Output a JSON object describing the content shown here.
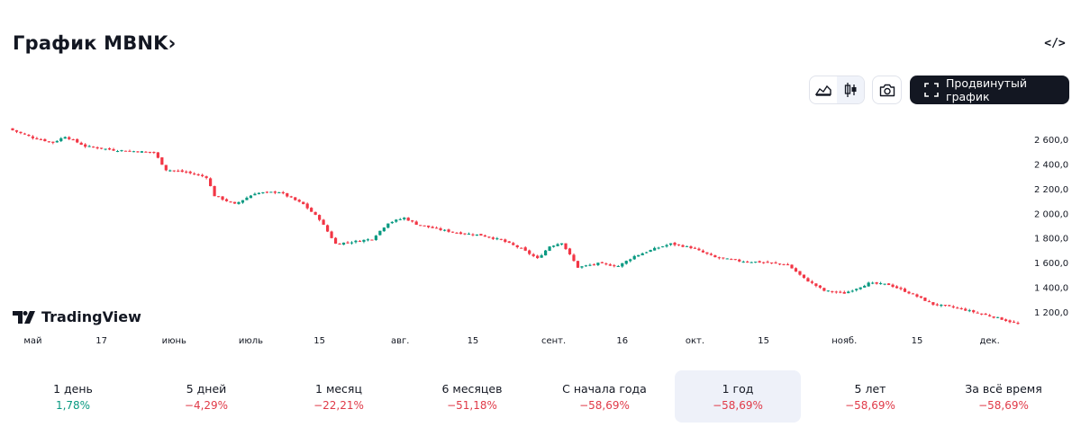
{
  "header": {
    "title": "График MBNK›",
    "embed_icon": "code-icon"
  },
  "toolbar": {
    "area_icon": "area-chart-icon",
    "candle_icon": "candlestick-icon",
    "camera_icon": "camera-icon",
    "advanced_label": "Продвинутый график",
    "advanced_icon": "fullscreen-icon"
  },
  "logo": {
    "text": "TradingView"
  },
  "colors": {
    "up": "#089981",
    "down": "#f23645",
    "accent": "#131722",
    "active_bg": "#eef1f9"
  },
  "periods": [
    {
      "label": "1 день",
      "change": "1,78%",
      "positive": true
    },
    {
      "label": "5 дней",
      "change": "−4,29%",
      "positive": false
    },
    {
      "label": "1 месяц",
      "change": "−22,21%",
      "positive": false
    },
    {
      "label": "6 месяцев",
      "change": "−51,18%",
      "positive": false
    },
    {
      "label": "С начала года",
      "change": "−58,69%",
      "positive": false
    },
    {
      "label": "1 год",
      "change": "−58,69%",
      "positive": false,
      "active": true
    },
    {
      "label": "5 лет",
      "change": "−58,69%",
      "positive": false
    },
    {
      "label": "За всё время",
      "change": "−58,69%",
      "positive": false
    }
  ],
  "chart_data": {
    "type": "candlestick",
    "title": "",
    "y_axis_position": "right",
    "ylim": [
      1070,
      2730
    ],
    "y_ticks": [
      {
        "value": 2600,
        "label": "2 600,0"
      },
      {
        "value": 2400,
        "label": "2 400,0"
      },
      {
        "value": 2200,
        "label": "2 200,0"
      },
      {
        "value": 2000,
        "label": "2 000,0"
      },
      {
        "value": 1800,
        "label": "1 800,0"
      },
      {
        "value": 1600,
        "label": "1 600,0"
      },
      {
        "value": 1400,
        "label": "1 400,0"
      },
      {
        "value": 1200,
        "label": "1 200,0"
      }
    ],
    "x_ticks": [
      {
        "index": 5,
        "label": "май"
      },
      {
        "index": 22,
        "label": "17"
      },
      {
        "index": 40,
        "label": "июнь"
      },
      {
        "index": 59,
        "label": "июль"
      },
      {
        "index": 76,
        "label": "15"
      },
      {
        "index": 96,
        "label": "авг."
      },
      {
        "index": 114,
        "label": "15"
      },
      {
        "index": 134,
        "label": "сент."
      },
      {
        "index": 151,
        "label": "16"
      },
      {
        "index": 169,
        "label": "окт."
      },
      {
        "index": 186,
        "label": "15"
      },
      {
        "index": 206,
        "label": "нояб."
      },
      {
        "index": 224,
        "label": "15"
      },
      {
        "index": 242,
        "label": "дек."
      }
    ],
    "anchors": [
      [
        0,
        2680
      ],
      [
        5,
        2620
      ],
      [
        10,
        2580
      ],
      [
        13,
        2630
      ],
      [
        18,
        2550
      ],
      [
        25,
        2520
      ],
      [
        35,
        2500
      ],
      [
        38,
        2360
      ],
      [
        43,
        2340
      ],
      [
        48,
        2300
      ],
      [
        50,
        2150
      ],
      [
        55,
        2080
      ],
      [
        60,
        2170
      ],
      [
        66,
        2180
      ],
      [
        72,
        2080
      ],
      [
        76,
        1960
      ],
      [
        80,
        1760
      ],
      [
        85,
        1780
      ],
      [
        89,
        1800
      ],
      [
        93,
        1930
      ],
      [
        97,
        1970
      ],
      [
        100,
        1920
      ],
      [
        105,
        1880
      ],
      [
        110,
        1850
      ],
      [
        116,
        1830
      ],
      [
        121,
        1790
      ],
      [
        126,
        1720
      ],
      [
        130,
        1640
      ],
      [
        133,
        1740
      ],
      [
        136,
        1770
      ],
      [
        140,
        1570
      ],
      [
        145,
        1600
      ],
      [
        150,
        1580
      ],
      [
        154,
        1660
      ],
      [
        159,
        1720
      ],
      [
        163,
        1760
      ],
      [
        168,
        1730
      ],
      [
        174,
        1650
      ],
      [
        180,
        1620
      ],
      [
        186,
        1610
      ],
      [
        192,
        1590
      ],
      [
        196,
        1480
      ],
      [
        201,
        1380
      ],
      [
        206,
        1360
      ],
      [
        212,
        1440
      ],
      [
        217,
        1430
      ],
      [
        223,
        1350
      ],
      [
        228,
        1270
      ],
      [
        234,
        1240
      ],
      [
        239,
        1200
      ],
      [
        244,
        1160
      ],
      [
        249,
        1110
      ]
    ],
    "candle_count": 250
  }
}
